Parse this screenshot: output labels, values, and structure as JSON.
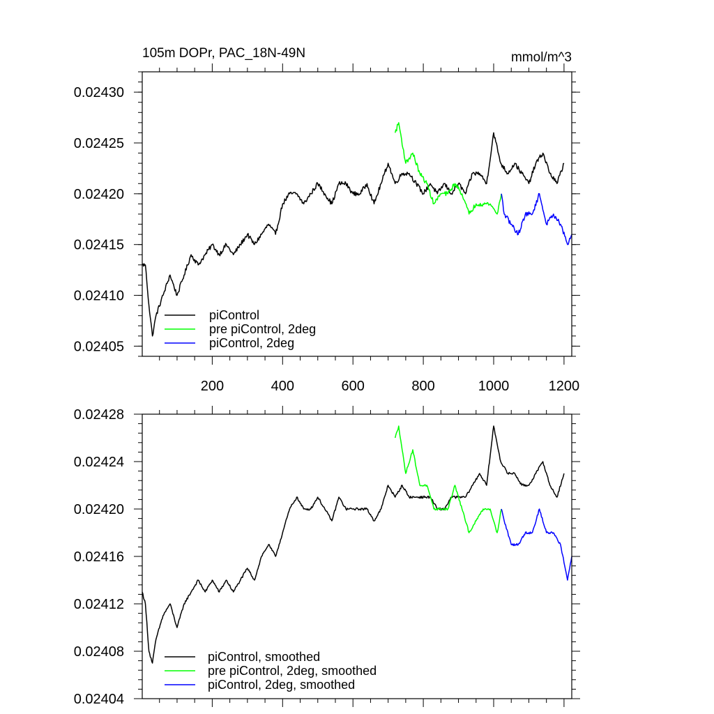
{
  "chart_data": [
    {
      "type": "line",
      "title": "105m DOPr, PAC_18N-49N",
      "units": "mmol/m^3",
      "xlim": [
        1,
        1222
      ],
      "ylim": [
        0.02404,
        0.02432
      ],
      "x_ticks": [
        200,
        400,
        600,
        800,
        1000,
        1200
      ],
      "x_tick_labels": [
        "200",
        "400",
        "600",
        "800",
        "1000",
        "1200"
      ],
      "y_ticks": [
        0.02405,
        0.0241,
        0.02415,
        0.0242,
        0.02425,
        0.0243
      ],
      "y_tick_labels": [
        "0.02405",
        "0.02410",
        "0.02415",
        "0.02420",
        "0.02425",
        "0.02430"
      ],
      "legend_position": "bottom-left",
      "series": [
        {
          "name": "piControl",
          "color": "#000000",
          "x": [
            1,
            10,
            20,
            30,
            40,
            60,
            80,
            100,
            120,
            140,
            160,
            180,
            200,
            220,
            240,
            260,
            280,
            300,
            320,
            340,
            360,
            380,
            400,
            420,
            440,
            460,
            480,
            500,
            520,
            540,
            560,
            580,
            600,
            620,
            640,
            660,
            680,
            700,
            720,
            740,
            760,
            780,
            800,
            820,
            840,
            860,
            880,
            900,
            920,
            940,
            960,
            980,
            1000,
            1020,
            1040,
            1060,
            1080,
            1100,
            1120,
            1140,
            1160,
            1180,
            1200
          ],
          "y": [
            0.02413,
            0.02413,
            0.02409,
            0.02406,
            0.02408,
            0.0241,
            0.02412,
            0.0241,
            0.02412,
            0.02414,
            0.02413,
            0.02414,
            0.02415,
            0.02414,
            0.02415,
            0.02414,
            0.02415,
            0.02416,
            0.02415,
            0.02416,
            0.02417,
            0.02416,
            0.02419,
            0.0242,
            0.0242,
            0.02419,
            0.0242,
            0.02421,
            0.0242,
            0.02419,
            0.02421,
            0.02421,
            0.0242,
            0.0242,
            0.02421,
            0.02419,
            0.02421,
            0.02423,
            0.02421,
            0.02422,
            0.02422,
            0.02421,
            0.0242,
            0.02421,
            0.0242,
            0.02421,
            0.0242,
            0.02421,
            0.0242,
            0.02422,
            0.02422,
            0.02421,
            0.02426,
            0.02423,
            0.02422,
            0.02423,
            0.02422,
            0.02421,
            0.02423,
            0.02424,
            0.02422,
            0.02421,
            0.02423
          ]
        },
        {
          "name": "pre piControl, 2deg",
          "color": "#00ff00",
          "x": [
            720,
            730,
            750,
            770,
            790,
            810,
            830,
            850,
            870,
            890,
            910,
            930,
            950,
            970,
            990,
            1010,
            1022
          ],
          "y": [
            0.02426,
            0.02427,
            0.02423,
            0.02424,
            0.02422,
            0.02421,
            0.02419,
            0.0242,
            0.0242,
            0.02421,
            0.0242,
            0.02418,
            0.02419,
            0.02419,
            0.02419,
            0.02418,
            0.0242
          ]
        },
        {
          "name": "piControl, 2deg",
          "color": "#0000ff",
          "x": [
            1022,
            1030,
            1050,
            1070,
            1090,
            1110,
            1130,
            1150,
            1170,
            1190,
            1210,
            1222
          ],
          "y": [
            0.0242,
            0.02418,
            0.02417,
            0.02416,
            0.02418,
            0.02418,
            0.0242,
            0.02417,
            0.02418,
            0.02417,
            0.02415,
            0.02416
          ]
        }
      ]
    },
    {
      "type": "line",
      "title": "",
      "xlim": [
        1,
        1222
      ],
      "ylim": [
        0.02404,
        0.02428
      ],
      "x_ticks": [
        200,
        400,
        600,
        800,
        1000,
        1200
      ],
      "x_tick_labels": [],
      "y_ticks": [
        0.02404,
        0.02408,
        0.02412,
        0.02416,
        0.0242,
        0.02424,
        0.02428
      ],
      "y_tick_labels": [
        "0.02404",
        "0.02408",
        "0.02412",
        "0.02416",
        "0.02420",
        "0.02424",
        "0.02428"
      ],
      "legend_position": "bottom-left",
      "series": [
        {
          "name": "piControl, smoothed",
          "color": "#000000",
          "x": [
            1,
            10,
            20,
            30,
            40,
            60,
            80,
            100,
            120,
            140,
            160,
            180,
            200,
            220,
            240,
            260,
            280,
            300,
            320,
            340,
            360,
            380,
            400,
            420,
            440,
            460,
            480,
            500,
            520,
            540,
            560,
            580,
            600,
            620,
            640,
            660,
            680,
            700,
            720,
            740,
            760,
            780,
            800,
            820,
            840,
            860,
            880,
            900,
            920,
            940,
            960,
            980,
            1000,
            1020,
            1040,
            1060,
            1080,
            1100,
            1120,
            1140,
            1160,
            1180,
            1200
          ],
          "y": [
            0.02413,
            0.02412,
            0.02408,
            0.02407,
            0.02409,
            0.02411,
            0.02412,
            0.0241,
            0.02412,
            0.02413,
            0.02414,
            0.02413,
            0.02414,
            0.02413,
            0.02414,
            0.02413,
            0.02414,
            0.02415,
            0.02414,
            0.02416,
            0.02417,
            0.02416,
            0.02418,
            0.0242,
            0.02421,
            0.0242,
            0.0242,
            0.02421,
            0.0242,
            0.02419,
            0.02421,
            0.0242,
            0.0242,
            0.0242,
            0.0242,
            0.02419,
            0.0242,
            0.02422,
            0.02421,
            0.02422,
            0.02421,
            0.02421,
            0.02421,
            0.02421,
            0.0242,
            0.0242,
            0.02421,
            0.02421,
            0.02421,
            0.02422,
            0.02423,
            0.02422,
            0.02427,
            0.02424,
            0.02423,
            0.02423,
            0.02422,
            0.02422,
            0.02423,
            0.02424,
            0.02422,
            0.02421,
            0.02423
          ]
        },
        {
          "name": "pre piControl, 2deg, smoothed",
          "color": "#00ff00",
          "x": [
            720,
            730,
            750,
            770,
            790,
            810,
            830,
            850,
            870,
            890,
            910,
            930,
            950,
            970,
            990,
            1010,
            1022
          ],
          "y": [
            0.02426,
            0.02427,
            0.02423,
            0.02425,
            0.02422,
            0.02422,
            0.0242,
            0.0242,
            0.0242,
            0.02422,
            0.0242,
            0.02418,
            0.02419,
            0.0242,
            0.0242,
            0.02418,
            0.0242
          ]
        },
        {
          "name": "piControl, 2deg, smoothed",
          "color": "#0000ff",
          "x": [
            1022,
            1030,
            1050,
            1070,
            1090,
            1110,
            1130,
            1150,
            1170,
            1190,
            1210,
            1222
          ],
          "y": [
            0.0242,
            0.02419,
            0.02417,
            0.02417,
            0.02418,
            0.02418,
            0.0242,
            0.02418,
            0.02418,
            0.02417,
            0.02414,
            0.02416
          ]
        }
      ]
    }
  ]
}
